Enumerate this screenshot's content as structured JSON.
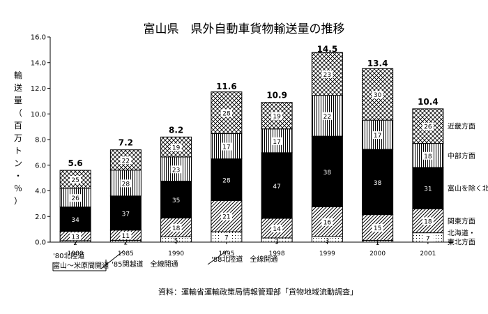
{
  "chart_data": {
    "type": "bar",
    "stacked": true,
    "title": "富山県　県外自動車貨物輸送量の推移",
    "ylabel": "輸送量（百万トン・％）",
    "ylim": [
      0,
      16
    ],
    "yticks": [
      "0.0",
      "2.0",
      "4.0",
      "6.0",
      "8.0",
      "10.0",
      "12.0",
      "14.0",
      "16.0"
    ],
    "categories": [
      "1980",
      "1985",
      "1990",
      "1995",
      "1998",
      "1999",
      "2000",
      "2001"
    ],
    "totals": [
      5.6,
      7.2,
      8.2,
      11.6,
      10.9,
      14.5,
      13.4,
      10.4
    ],
    "total_labels": [
      "5.6",
      "7.2",
      "8.2",
      "11.6",
      "10.9",
      "14.5",
      "13.4",
      "10.4"
    ],
    "series": [
      {
        "name": "北海道・東北方面",
        "percent_labels": [
          "2",
          "2",
          "5",
          "7",
          "3",
          "3",
          "1",
          "7"
        ],
        "percent": [
          2,
          2,
          5,
          7,
          3,
          3,
          1,
          7
        ],
        "fill": "dotted"
      },
      {
        "name": "関東方面",
        "percent_labels": [
          "13",
          "11",
          "18",
          "21",
          "14",
          "16",
          "15",
          "18"
        ],
        "percent": [
          13,
          11,
          18,
          21,
          14,
          16,
          15,
          18
        ],
        "fill": "diagonal"
      },
      {
        "name": "富山を除く北陸",
        "percent_labels": [
          "34",
          "37",
          "35",
          "28",
          "47",
          "38",
          "38",
          "31"
        ],
        "percent": [
          34,
          37,
          35,
          28,
          47,
          38,
          38,
          31
        ],
        "fill": "solid-black"
      },
      {
        "name": "中部方面",
        "percent_labels": [
          "26",
          "28",
          "23",
          "17",
          "17",
          "22",
          "17",
          "18"
        ],
        "percent": [
          26,
          28,
          23,
          17,
          17,
          22,
          17,
          18
        ],
        "fill": "vertical"
      },
      {
        "name": "近畿方面",
        "percent_labels": [
          "25",
          "22",
          "19",
          "28",
          "19",
          "23",
          "30",
          "26"
        ],
        "percent": [
          25,
          22,
          19,
          28,
          19,
          23,
          30,
          26
        ],
        "fill": "crosshatch"
      }
    ],
    "legend_placement": "right, beside the 2001 bar",
    "annotations": {
      "a1980": [
        "'80北陸道",
        "富山～米原間開通"
      ],
      "a1985": "'85関越道　全線開通",
      "a1988": "'88北陸道　全線開通"
    },
    "source": "資料：運輸省運輸政策局情報管理部「貨物地域流動調査」",
    "grid": false,
    "colors": {
      "bar_outline": "#000000",
      "solid": "#000000",
      "background": "#ffffff"
    }
  }
}
